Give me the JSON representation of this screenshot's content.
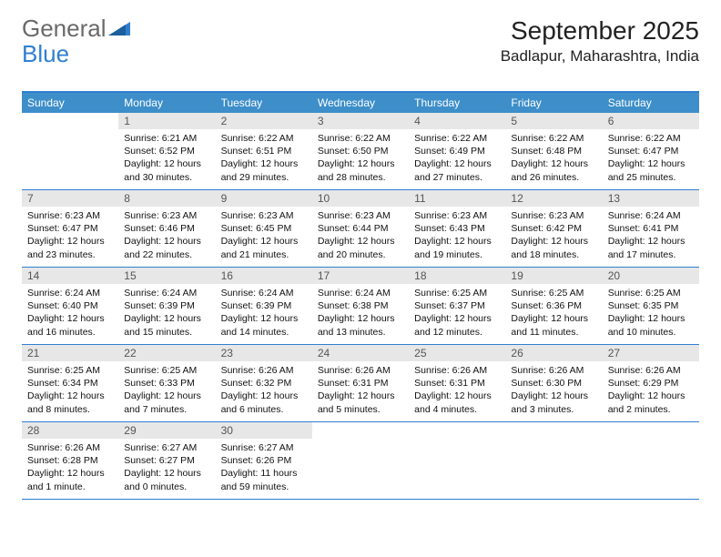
{
  "logo": {
    "text1": "General",
    "text2": "Blue"
  },
  "title": "September 2025",
  "location": "Badlapur, Maharashtra, India",
  "colors": {
    "header_bar": "#3d8ec9",
    "border": "#2f7fd1",
    "daynum_bg": "#e7e7e7",
    "logo_gray": "#6a6a6a",
    "logo_blue": "#2f7fd1"
  },
  "dow": [
    "Sunday",
    "Monday",
    "Tuesday",
    "Wednesday",
    "Thursday",
    "Friday",
    "Saturday"
  ],
  "weeks": [
    [
      {
        "n": "",
        "sr": "",
        "ss": "",
        "dl": ""
      },
      {
        "n": "1",
        "sr": "Sunrise: 6:21 AM",
        "ss": "Sunset: 6:52 PM",
        "dl": "Daylight: 12 hours and 30 minutes."
      },
      {
        "n": "2",
        "sr": "Sunrise: 6:22 AM",
        "ss": "Sunset: 6:51 PM",
        "dl": "Daylight: 12 hours and 29 minutes."
      },
      {
        "n": "3",
        "sr": "Sunrise: 6:22 AM",
        "ss": "Sunset: 6:50 PM",
        "dl": "Daylight: 12 hours and 28 minutes."
      },
      {
        "n": "4",
        "sr": "Sunrise: 6:22 AM",
        "ss": "Sunset: 6:49 PM",
        "dl": "Daylight: 12 hours and 27 minutes."
      },
      {
        "n": "5",
        "sr": "Sunrise: 6:22 AM",
        "ss": "Sunset: 6:48 PM",
        "dl": "Daylight: 12 hours and 26 minutes."
      },
      {
        "n": "6",
        "sr": "Sunrise: 6:22 AM",
        "ss": "Sunset: 6:47 PM",
        "dl": "Daylight: 12 hours and 25 minutes."
      }
    ],
    [
      {
        "n": "7",
        "sr": "Sunrise: 6:23 AM",
        "ss": "Sunset: 6:47 PM",
        "dl": "Daylight: 12 hours and 23 minutes."
      },
      {
        "n": "8",
        "sr": "Sunrise: 6:23 AM",
        "ss": "Sunset: 6:46 PM",
        "dl": "Daylight: 12 hours and 22 minutes."
      },
      {
        "n": "9",
        "sr": "Sunrise: 6:23 AM",
        "ss": "Sunset: 6:45 PM",
        "dl": "Daylight: 12 hours and 21 minutes."
      },
      {
        "n": "10",
        "sr": "Sunrise: 6:23 AM",
        "ss": "Sunset: 6:44 PM",
        "dl": "Daylight: 12 hours and 20 minutes."
      },
      {
        "n": "11",
        "sr": "Sunrise: 6:23 AM",
        "ss": "Sunset: 6:43 PM",
        "dl": "Daylight: 12 hours and 19 minutes."
      },
      {
        "n": "12",
        "sr": "Sunrise: 6:23 AM",
        "ss": "Sunset: 6:42 PM",
        "dl": "Daylight: 12 hours and 18 minutes."
      },
      {
        "n": "13",
        "sr": "Sunrise: 6:24 AM",
        "ss": "Sunset: 6:41 PM",
        "dl": "Daylight: 12 hours and 17 minutes."
      }
    ],
    [
      {
        "n": "14",
        "sr": "Sunrise: 6:24 AM",
        "ss": "Sunset: 6:40 PM",
        "dl": "Daylight: 12 hours and 16 minutes."
      },
      {
        "n": "15",
        "sr": "Sunrise: 6:24 AM",
        "ss": "Sunset: 6:39 PM",
        "dl": "Daylight: 12 hours and 15 minutes."
      },
      {
        "n": "16",
        "sr": "Sunrise: 6:24 AM",
        "ss": "Sunset: 6:39 PM",
        "dl": "Daylight: 12 hours and 14 minutes."
      },
      {
        "n": "17",
        "sr": "Sunrise: 6:24 AM",
        "ss": "Sunset: 6:38 PM",
        "dl": "Daylight: 12 hours and 13 minutes."
      },
      {
        "n": "18",
        "sr": "Sunrise: 6:25 AM",
        "ss": "Sunset: 6:37 PM",
        "dl": "Daylight: 12 hours and 12 minutes."
      },
      {
        "n": "19",
        "sr": "Sunrise: 6:25 AM",
        "ss": "Sunset: 6:36 PM",
        "dl": "Daylight: 12 hours and 11 minutes."
      },
      {
        "n": "20",
        "sr": "Sunrise: 6:25 AM",
        "ss": "Sunset: 6:35 PM",
        "dl": "Daylight: 12 hours and 10 minutes."
      }
    ],
    [
      {
        "n": "21",
        "sr": "Sunrise: 6:25 AM",
        "ss": "Sunset: 6:34 PM",
        "dl": "Daylight: 12 hours and 8 minutes."
      },
      {
        "n": "22",
        "sr": "Sunrise: 6:25 AM",
        "ss": "Sunset: 6:33 PM",
        "dl": "Daylight: 12 hours and 7 minutes."
      },
      {
        "n": "23",
        "sr": "Sunrise: 6:26 AM",
        "ss": "Sunset: 6:32 PM",
        "dl": "Daylight: 12 hours and 6 minutes."
      },
      {
        "n": "24",
        "sr": "Sunrise: 6:26 AM",
        "ss": "Sunset: 6:31 PM",
        "dl": "Daylight: 12 hours and 5 minutes."
      },
      {
        "n": "25",
        "sr": "Sunrise: 6:26 AM",
        "ss": "Sunset: 6:31 PM",
        "dl": "Daylight: 12 hours and 4 minutes."
      },
      {
        "n": "26",
        "sr": "Sunrise: 6:26 AM",
        "ss": "Sunset: 6:30 PM",
        "dl": "Daylight: 12 hours and 3 minutes."
      },
      {
        "n": "27",
        "sr": "Sunrise: 6:26 AM",
        "ss": "Sunset: 6:29 PM",
        "dl": "Daylight: 12 hours and 2 minutes."
      }
    ],
    [
      {
        "n": "28",
        "sr": "Sunrise: 6:26 AM",
        "ss": "Sunset: 6:28 PM",
        "dl": "Daylight: 12 hours and 1 minute."
      },
      {
        "n": "29",
        "sr": "Sunrise: 6:27 AM",
        "ss": "Sunset: 6:27 PM",
        "dl": "Daylight: 12 hours and 0 minutes."
      },
      {
        "n": "30",
        "sr": "Sunrise: 6:27 AM",
        "ss": "Sunset: 6:26 PM",
        "dl": "Daylight: 11 hours and 59 minutes."
      },
      {
        "n": "",
        "sr": "",
        "ss": "",
        "dl": ""
      },
      {
        "n": "",
        "sr": "",
        "ss": "",
        "dl": ""
      },
      {
        "n": "",
        "sr": "",
        "ss": "",
        "dl": ""
      },
      {
        "n": "",
        "sr": "",
        "ss": "",
        "dl": ""
      }
    ]
  ]
}
